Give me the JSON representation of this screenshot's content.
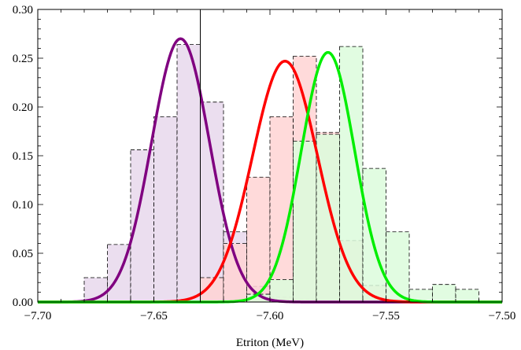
{
  "chart_data": {
    "type": "histogram_with_curves",
    "xlabel": "Etriton (MeV)",
    "ylabel": "",
    "xlim": [
      -7.7,
      -7.5
    ],
    "ylim": [
      0.0,
      0.3
    ],
    "x_ticks": [
      -7.7,
      -7.65,
      -7.6,
      -7.55,
      -7.5
    ],
    "x_tick_labels": [
      "−7.70",
      "−7.65",
      "−7.60",
      "−7.55",
      "−7.50"
    ],
    "y_ticks": [
      0.0,
      0.05,
      0.1,
      0.15,
      0.2,
      0.25,
      0.3
    ],
    "y_tick_labels": [
      "0.00",
      "0.05",
      "0.10",
      "0.15",
      "0.20",
      "0.25",
      "0.30"
    ],
    "vertical_line_x": -7.63,
    "bin_width": 0.01,
    "histograms": [
      {
        "color": "#e8d8ec",
        "bins_start": [
          -7.68,
          -7.67,
          -7.66,
          -7.65,
          -7.64,
          -7.63,
          -7.62,
          -7.61,
          -7.6,
          -7.59
        ],
        "values": [
          0.025,
          0.059,
          0.156,
          0.19,
          0.264,
          0.205,
          0.072,
          0.016,
          0.005,
          0.003
        ]
      },
      {
        "color": "#ffd4d4",
        "bins_start": [
          -7.63,
          -7.62,
          -7.61,
          -7.6,
          -7.59,
          -7.58,
          -7.57,
          -7.56
        ],
        "values": [
          0.025,
          0.06,
          0.128,
          0.19,
          0.252,
          0.174,
          0.063,
          0.017
        ]
      },
      {
        "color": "#dcfcdc",
        "bins_start": [
          -7.61,
          -7.6,
          -7.59,
          -7.58,
          -7.57,
          -7.56,
          -7.55,
          -7.54,
          -7.53,
          -7.52
        ],
        "values": [
          0.008,
          0.023,
          0.165,
          0.172,
          0.262,
          0.137,
          0.072,
          0.013,
          0.018,
          0.013
        ]
      }
    ],
    "curves": [
      {
        "color": "#800080",
        "mean": -7.6385,
        "sigma": 0.0125,
        "peak": 0.27
      },
      {
        "color": "#ff0000",
        "mean": -7.5935,
        "sigma": 0.014,
        "peak": 0.247
      },
      {
        "color": "#00ee00",
        "mean": -7.575,
        "sigma": 0.0115,
        "peak": 0.256
      }
    ]
  }
}
